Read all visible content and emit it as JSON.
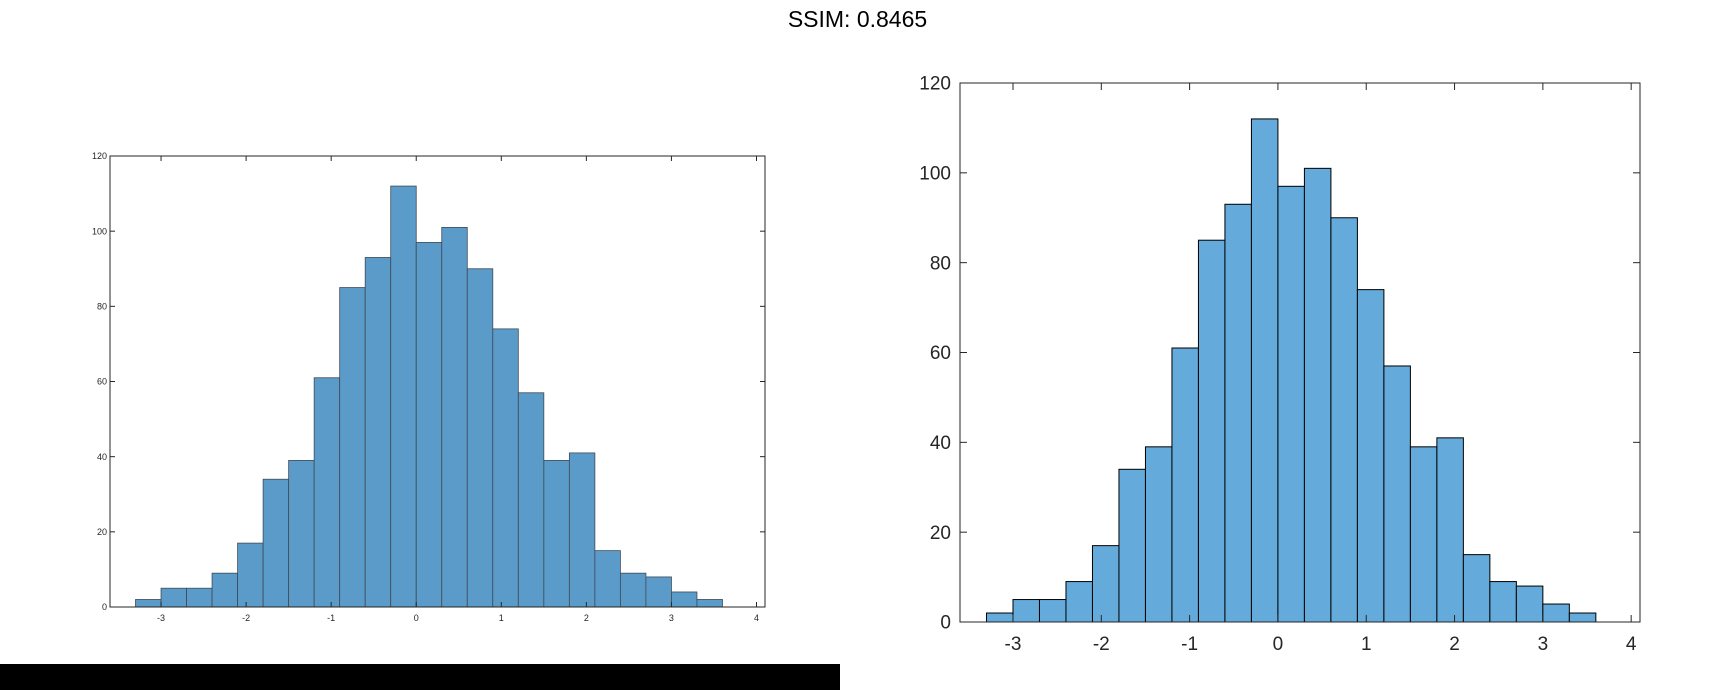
{
  "header": {
    "title": "SSIM: 0.8465"
  },
  "colors": {
    "bar_fill_left": "#5b9bc9",
    "bar_fill_right": "#64aadb",
    "bar_edge_left": "#3f4a55",
    "bar_edge_right": "#000000"
  },
  "chart_data": [
    {
      "type": "bar",
      "title": "",
      "xlabel": "",
      "ylabel": "",
      "bin_edges": [
        -3.3,
        -3.0,
        -2.7,
        -2.4,
        -2.1,
        -1.8,
        -1.5,
        -1.2,
        -0.9,
        -0.6,
        -0.3,
        0.0,
        0.3,
        0.6,
        0.9,
        1.2,
        1.5,
        1.8,
        2.1,
        2.4,
        2.7,
        3.0,
        3.3,
        3.6,
        3.9
      ],
      "values": [
        2,
        5,
        5,
        9,
        17,
        34,
        39,
        61,
        85,
        93,
        112,
        97,
        101,
        90,
        74,
        57,
        39,
        41,
        15,
        9,
        8,
        4,
        2,
        0,
        1
      ],
      "xticks": [
        "-3",
        "-2",
        "-1",
        "0",
        "1",
        "2",
        "3",
        "4"
      ],
      "yticks": [
        "0",
        "20",
        "40",
        "60",
        "80",
        "100",
        "120"
      ],
      "xlim": [
        -3.6,
        4.1
      ],
      "ylim": [
        0,
        120
      ]
    },
    {
      "type": "bar",
      "title": "",
      "xlabel": "",
      "ylabel": "",
      "bin_edges": [
        -3.3,
        -3.0,
        -2.7,
        -2.4,
        -2.1,
        -1.8,
        -1.5,
        -1.2,
        -0.9,
        -0.6,
        -0.3,
        0.0,
        0.3,
        0.6,
        0.9,
        1.2,
        1.5,
        1.8,
        2.1,
        2.4,
        2.7,
        3.0,
        3.3,
        3.6,
        3.9
      ],
      "values": [
        2,
        5,
        5,
        9,
        17,
        34,
        39,
        61,
        85,
        93,
        112,
        97,
        101,
        90,
        74,
        57,
        39,
        41,
        15,
        9,
        8,
        4,
        2,
        0,
        1
      ],
      "xticks": [
        "-3",
        "-2",
        "-1",
        "0",
        "1",
        "2",
        "3",
        "4"
      ],
      "yticks": [
        "0",
        "20",
        "40",
        "60",
        "80",
        "100",
        "120"
      ],
      "xlim": [
        -3.6,
        4.1
      ],
      "ylim": [
        0,
        120
      ]
    }
  ]
}
